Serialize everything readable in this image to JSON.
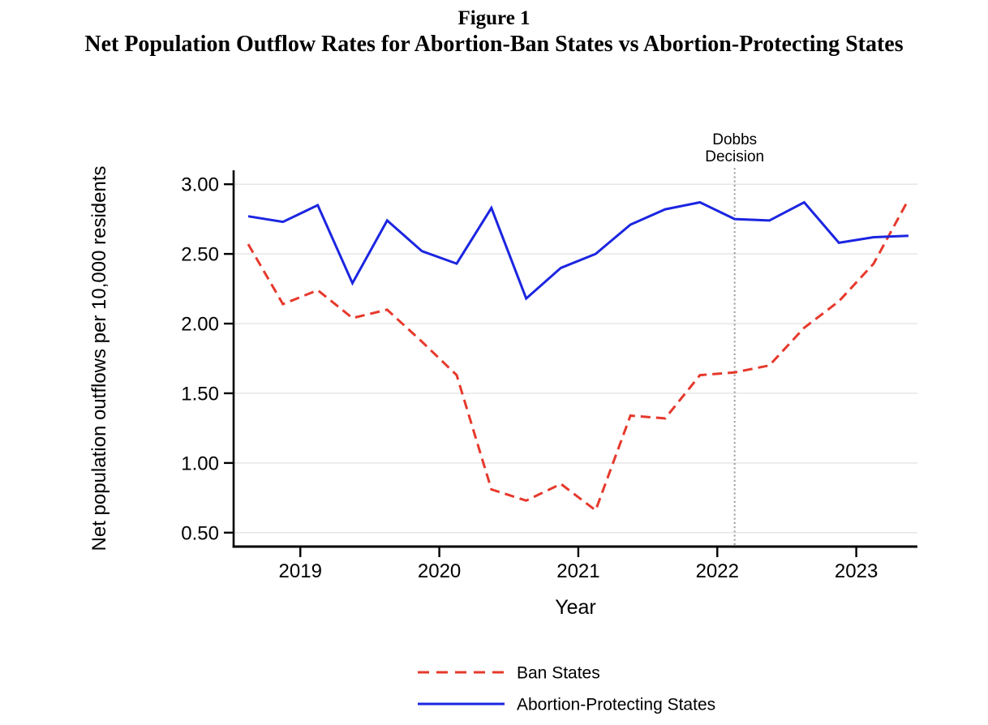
{
  "figure": {
    "label": "Figure 1",
    "title": "Net Population Outflow Rates for Abortion-Ban States vs Abortion-Protecting States"
  },
  "chart_data": {
    "type": "line",
    "xlabel": "Year",
    "ylabel": "Net population outflows per 10,000 residents",
    "xlim": [
      2018.52,
      2023.44
    ],
    "ylim": [
      0.4,
      3.1
    ],
    "x_ticks": [
      2019,
      2020,
      2021,
      2022,
      2023
    ],
    "y_ticks": [
      0.5,
      1.0,
      1.5,
      2.0,
      2.5,
      3.0
    ],
    "y_tick_labels": [
      "0.50",
      "1.00",
      "1.50",
      "2.00",
      "2.50",
      "3.00"
    ],
    "grid": "horizontal",
    "legend_position": "bottom",
    "x": [
      2018.625,
      2018.875,
      2019.125,
      2019.375,
      2019.625,
      2019.875,
      2020.125,
      2020.375,
      2020.625,
      2020.875,
      2021.125,
      2021.375,
      2021.625,
      2021.875,
      2022.125,
      2022.375,
      2022.625,
      2022.875,
      2023.125,
      2023.375
    ],
    "series": [
      {
        "name": "Ban States",
        "style": "dashed",
        "color": "#e6392c",
        "values": [
          2.57,
          2.14,
          2.24,
          2.04,
          2.1,
          1.87,
          1.63,
          0.81,
          0.73,
          0.85,
          0.66,
          1.34,
          1.32,
          1.63,
          1.65,
          1.7,
          1.97,
          2.16,
          2.43,
          2.89
        ]
      },
      {
        "name": "Abortion-Protecting States",
        "style": "solid",
        "color": "#1b25e0",
        "values": [
          2.77,
          2.73,
          2.85,
          2.29,
          2.74,
          2.52,
          2.43,
          2.83,
          2.18,
          2.4,
          2.5,
          2.71,
          2.82,
          2.87,
          2.75,
          2.74,
          2.87,
          2.58,
          2.62,
          2.63
        ]
      }
    ],
    "annotation": {
      "label_lines": [
        "Dobbs",
        "Decision"
      ],
      "x": 2022.125,
      "style": "dotted-vertical-line",
      "color": "#a0a0a0"
    },
    "axis_color": "#000000",
    "grid_color": "#e8e8e8"
  }
}
